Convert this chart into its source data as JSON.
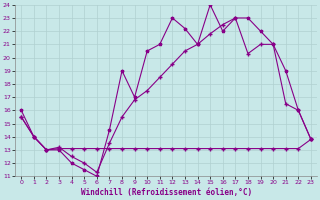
{
  "xlabel": "Windchill (Refroidissement éolien,°C)",
  "background_color": "#c8e8e8",
  "grid_color": "#b0d0d0",
  "line_color": "#880088",
  "xlim": [
    -0.5,
    23.5
  ],
  "ylim": [
    11,
    24
  ],
  "yticks": [
    11,
    12,
    13,
    14,
    15,
    16,
    17,
    18,
    19,
    20,
    21,
    22,
    23,
    24
  ],
  "xticks": [
    0,
    1,
    2,
    3,
    4,
    5,
    6,
    7,
    8,
    9,
    10,
    11,
    12,
    13,
    14,
    15,
    16,
    17,
    18,
    19,
    20,
    21,
    22,
    23
  ],
  "series1_x": [
    0,
    1,
    2,
    3,
    4,
    5,
    6,
    7,
    8,
    9,
    10,
    11,
    12,
    13,
    14,
    15,
    16,
    17,
    18,
    19,
    20,
    21,
    22,
    23
  ],
  "series1_y": [
    16,
    14,
    13,
    13,
    12,
    11.5,
    11,
    14.5,
    19,
    17,
    20.5,
    21,
    23,
    22.2,
    21,
    24,
    22,
    23,
    23,
    22,
    21,
    19,
    16,
    13.8
  ],
  "series2_x": [
    0,
    1,
    2,
    3,
    4,
    5,
    6,
    7,
    8,
    9,
    10,
    11,
    12,
    13,
    14,
    15,
    16,
    17,
    18,
    19,
    20,
    21,
    22,
    23
  ],
  "series2_y": [
    15.5,
    14,
    13,
    13.1,
    13.1,
    13.1,
    13.1,
    13.1,
    13.1,
    13.1,
    13.1,
    13.1,
    13.1,
    13.1,
    13.1,
    13.1,
    13.1,
    13.1,
    13.1,
    13.1,
    13.1,
    13.1,
    13.1,
    13.8
  ],
  "series3_x": [
    0,
    1,
    2,
    3,
    4,
    5,
    6,
    7,
    8,
    9,
    10,
    11,
    12,
    13,
    14,
    15,
    16,
    17,
    18,
    19,
    20,
    21,
    22,
    23
  ],
  "series3_y": [
    15.5,
    14,
    13,
    13.2,
    12.5,
    12,
    11.3,
    13.5,
    15.5,
    16.8,
    17.5,
    18.5,
    19.5,
    20.5,
    21.0,
    21.8,
    22.5,
    23.0,
    20.3,
    21.0,
    21.0,
    16.5,
    16.0,
    13.8
  ]
}
